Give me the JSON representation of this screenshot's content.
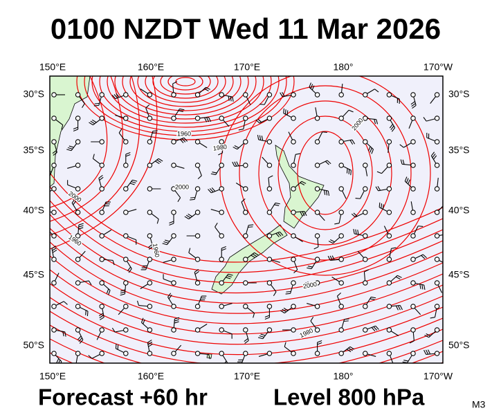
{
  "title": "0100 NZDT Wed 11 Mar 2026",
  "axes": {
    "top": [
      "150°E",
      "160°E",
      "170°E",
      "180°",
      "170°W"
    ],
    "bottom": [
      "150°E",
      "160°E",
      "170°E",
      "180°",
      "170°W"
    ],
    "left": [
      "30°S",
      "35°S",
      "40°S",
      "45°S",
      "50°S"
    ],
    "right": [
      "30°S",
      "35°S",
      "40°S",
      "45°S",
      "50°S"
    ]
  },
  "contour_labels": [
    "1960",
    "1980",
    "2000",
    "2000",
    "2000",
    "1960",
    "1960",
    "2000",
    "1980"
  ],
  "footer": {
    "forecast": "Forecast +60 hr",
    "level": "Level 800 hPa",
    "code": "M3"
  }
}
